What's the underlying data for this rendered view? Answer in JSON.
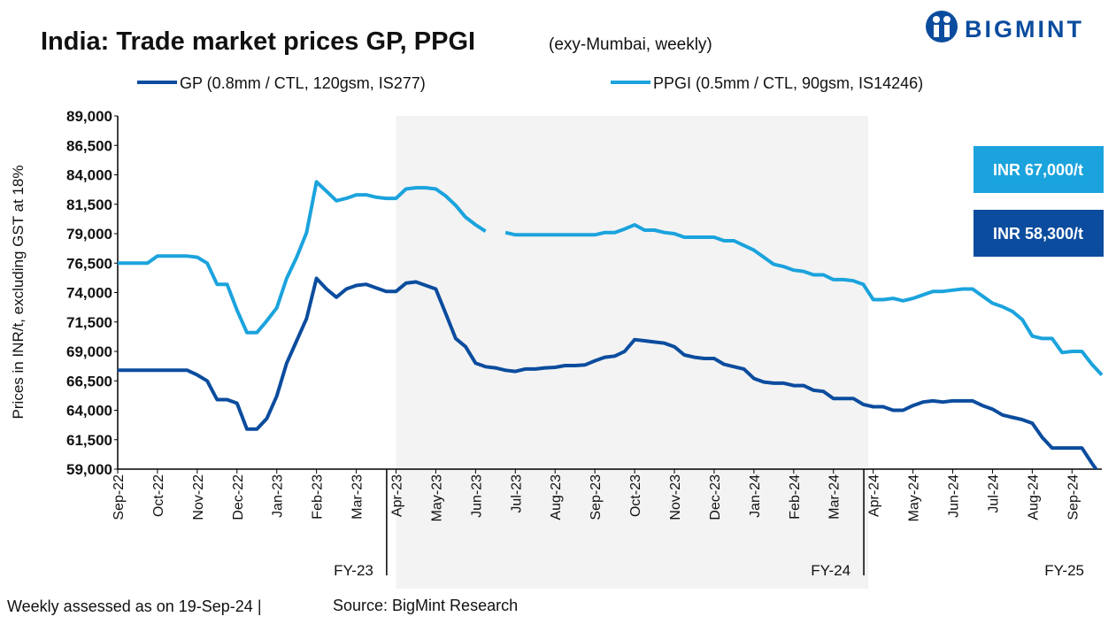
{
  "chart_data": {
    "type": "line",
    "title": "India: Trade market prices GP, PPGI",
    "subtitle": "(exy-Mumbai, weekly)",
    "brand": "BIGMINT",
    "y_label": "Prices in INR/t, excluding GST at 18%",
    "footnote": "Weekly assessed as on 19-Sep-24 |",
    "source": "Source: BigMint Research",
    "categories": [
      "Sep-22",
      null,
      null,
      null,
      "Oct-22",
      null,
      null,
      null,
      "Nov-22",
      null,
      null,
      null,
      "Dec-22",
      null,
      null,
      null,
      "Jan-23",
      null,
      null,
      null,
      "Feb-23",
      null,
      null,
      null,
      "Mar-23",
      null,
      null,
      null,
      "Apr-23",
      null,
      null,
      null,
      "May-23",
      null,
      null,
      null,
      "Jun-23",
      null,
      null,
      null,
      "Jul-23",
      null,
      null,
      null,
      "Aug-23",
      null,
      null,
      null,
      "Sep-23",
      null,
      null,
      null,
      "Oct-23",
      null,
      null,
      null,
      "Nov-23",
      null,
      null,
      null,
      "Dec-23",
      null,
      null,
      null,
      "Jan-24",
      null,
      null,
      null,
      "Feb-24",
      null,
      null,
      null,
      "Mar-24",
      null,
      null,
      null,
      "Apr-24",
      null,
      null,
      null,
      "May-24",
      null,
      null,
      null,
      "Jun-24",
      null,
      null,
      null,
      "Jul-24",
      null,
      null,
      null,
      "Aug-24",
      null,
      null,
      null,
      "Sep-24",
      null,
      null,
      null
    ],
    "series": [
      {
        "name": "GP (0.8mm / CTL, 120gsm, IS277)",
        "color": "#0b4c9e",
        "values": [
          67400,
          67400,
          67400,
          67400,
          67400,
          67400,
          67400,
          67400,
          67000,
          66500,
          64900,
          64900,
          64600,
          62400,
          62400,
          63300,
          65200,
          68000,
          69900,
          71800,
          75200,
          74300,
          73600,
          74300,
          74600,
          74700,
          74400,
          74100,
          74100,
          74800,
          74900,
          74600,
          74300,
          72200,
          70100,
          69400,
          68000,
          67700,
          67600,
          67400,
          67300,
          67500,
          67500,
          67600,
          67650,
          67800,
          67800,
          67850,
          68200,
          68500,
          68600,
          69000,
          70000,
          69900,
          69800,
          69700,
          69400,
          68700,
          68500,
          68400,
          68400,
          67900,
          67700,
          67500,
          66700,
          66400,
          66300,
          66300,
          66100,
          66100,
          65700,
          65600,
          65000,
          65000,
          65000,
          64500,
          64300,
          64300,
          64000,
          64000,
          64400,
          64700,
          64800,
          64700,
          64800,
          64800,
          64800,
          64400,
          64100,
          63600,
          63400,
          63200,
          62900,
          61700,
          60800,
          60800,
          60800,
          60800,
          59500,
          58300
        ]
      },
      {
        "name": "PPGI (0.5mm / CTL, 90gsm, IS14246)",
        "color": "#1ba3dd",
        "values": [
          76500,
          76500,
          76500,
          76500,
          77100,
          77100,
          77100,
          77100,
          77000,
          76500,
          74700,
          74700,
          72500,
          70600,
          70600,
          71600,
          72700,
          75200,
          77000,
          79100,
          83400,
          82600,
          81800,
          82000,
          82300,
          82300,
          82100,
          82000,
          82000,
          82800,
          82900,
          82900,
          82800,
          82200,
          81400,
          80400,
          79750,
          79200,
          null,
          79100,
          78900,
          78900,
          78900,
          78900,
          78900,
          78900,
          78900,
          78900,
          78900,
          79100,
          79100,
          79400,
          79750,
          79300,
          79300,
          79100,
          79000,
          78700,
          78700,
          78700,
          78700,
          78400,
          78400,
          78000,
          77600,
          77000,
          76400,
          76200,
          75900,
          75800,
          75500,
          75500,
          75100,
          75100,
          75000,
          74700,
          73400,
          73400,
          73500,
          73300,
          73500,
          73800,
          74100,
          74100,
          74200,
          74300,
          74300,
          73700,
          73100,
          72800,
          72400,
          71700,
          70300,
          70100,
          70100,
          68900,
          69000,
          69000,
          67900,
          67000
        ]
      }
    ],
    "ylim": [
      59000,
      89000
    ],
    "yticks": [
      {
        "value": 59000,
        "label": "59,000"
      },
      {
        "value": 61500,
        "label": "61,500"
      },
      {
        "value": 64000,
        "label": "64,000"
      },
      {
        "value": 66500,
        "label": "66,500"
      },
      {
        "value": 69000,
        "label": "69,000"
      },
      {
        "value": 71500,
        "label": "71,500"
      },
      {
        "value": 74000,
        "label": "74,000"
      },
      {
        "value": 76500,
        "label": "76,500"
      },
      {
        "value": 79000,
        "label": "79,000"
      },
      {
        "value": 81500,
        "label": "81,500"
      },
      {
        "value": 84000,
        "label": "84,000"
      },
      {
        "value": 86500,
        "label": "86,500"
      },
      {
        "value": 89000,
        "label": "89,000"
      }
    ],
    "fiscal_years": [
      "FY-23",
      "FY-24",
      "FY-25"
    ],
    "annotations": [
      {
        "text": "INR 67,000/t",
        "color": "#1ba3dd"
      },
      {
        "text": "INR 58,300/t",
        "color": "#0b4c9e"
      }
    ]
  }
}
